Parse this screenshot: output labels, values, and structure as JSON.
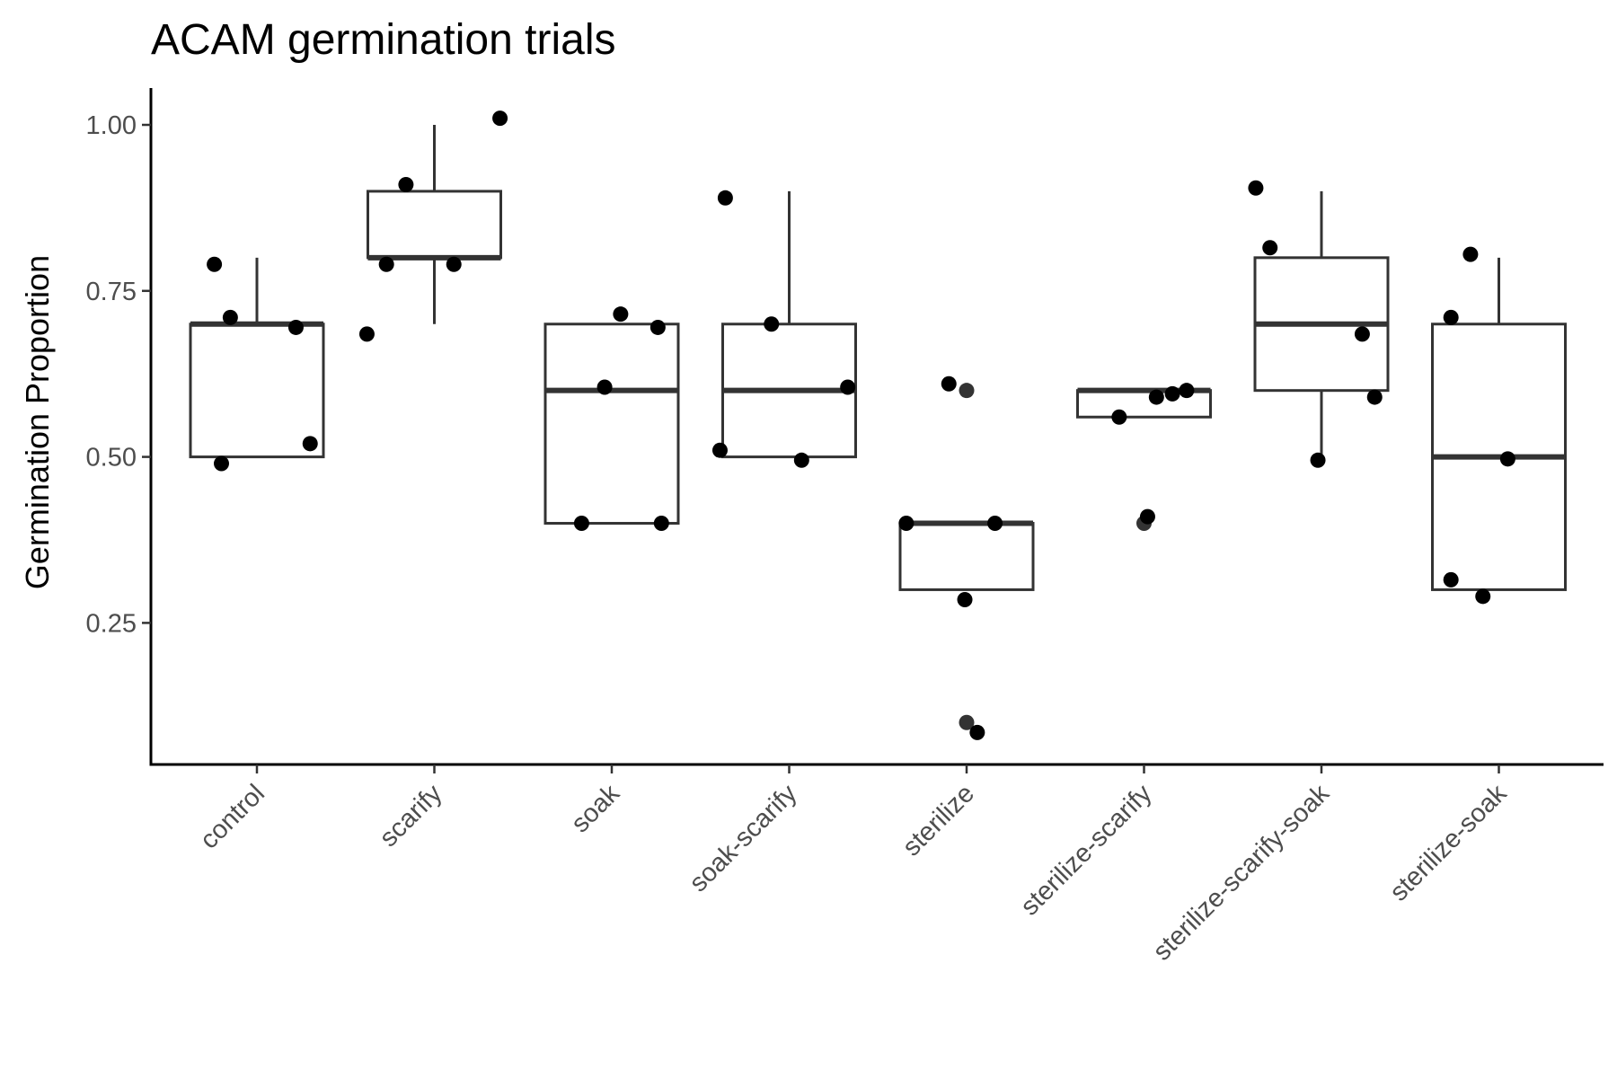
{
  "chart_data": {
    "type": "boxplot",
    "title": "ACAM germination trials",
    "xlabel": "",
    "ylabel": "Germination Proportion",
    "ylim": [
      0.07,
      1.05
    ],
    "yticks": [
      0.25,
      0.5,
      0.75,
      1.0
    ],
    "ytick_labels": [
      "0.25",
      "0.50",
      "0.75",
      "1.00"
    ],
    "grid": false,
    "categories": [
      "control",
      "scarify",
      "soak",
      "soak-scarify",
      "sterilize",
      "sterilize-scarify",
      "sterilize-scarify-soak",
      "sterilize-soak"
    ],
    "boxes": [
      {
        "category": "control",
        "whisker_low": 0.5,
        "q1": 0.5,
        "median": 0.7,
        "q3": 0.7,
        "whisker_high": 0.8,
        "outliers": []
      },
      {
        "category": "scarify",
        "whisker_low": 0.7,
        "q1": 0.8,
        "median": 0.8,
        "q3": 0.9,
        "whisker_high": 1.0,
        "outliers": []
      },
      {
        "category": "soak",
        "whisker_low": 0.4,
        "q1": 0.4,
        "median": 0.6,
        "q3": 0.7,
        "whisker_high": 0.7,
        "outliers": []
      },
      {
        "category": "soak-scarify",
        "whisker_low": 0.5,
        "q1": 0.5,
        "median": 0.6,
        "q3": 0.7,
        "whisker_high": 0.9,
        "outliers": []
      },
      {
        "category": "sterilize",
        "whisker_low": 0.3,
        "q1": 0.3,
        "median": 0.4,
        "q3": 0.4,
        "whisker_high": 0.4,
        "outliers": [
          0.6,
          0.1
        ]
      },
      {
        "category": "sterilize-scarify",
        "whisker_low": 0.56,
        "q1": 0.56,
        "median": 0.6,
        "q3": 0.6,
        "whisker_high": 0.6,
        "outliers": [
          0.4
        ]
      },
      {
        "category": "sterilize-scarify-soak",
        "whisker_low": 0.5,
        "q1": 0.6,
        "median": 0.7,
        "q3": 0.8,
        "whisker_high": 0.9,
        "outliers": []
      },
      {
        "category": "sterilize-soak",
        "whisker_low": 0.3,
        "q1": 0.3,
        "median": 0.5,
        "q3": 0.7,
        "whisker_high": 0.8,
        "outliers": []
      }
    ],
    "points": [
      {
        "category": "control",
        "jitter": -0.24,
        "y": 0.79
      },
      {
        "category": "control",
        "jitter": -0.15,
        "y": 0.71
      },
      {
        "category": "control",
        "jitter": 0.22,
        "y": 0.695
      },
      {
        "category": "control",
        "jitter": 0.3,
        "y": 0.52
      },
      {
        "category": "control",
        "jitter": -0.2,
        "y": 0.49
      },
      {
        "category": "scarify",
        "jitter": -0.16,
        "y": 0.91
      },
      {
        "category": "scarify",
        "jitter": -0.27,
        "y": 0.79
      },
      {
        "category": "scarify",
        "jitter": 0.11,
        "y": 0.79
      },
      {
        "category": "scarify",
        "jitter": -0.38,
        "y": 0.685
      },
      {
        "category": "scarify",
        "jitter": 0.37,
        "y": 1.01
      },
      {
        "category": "soak",
        "jitter": 0.05,
        "y": 0.715
      },
      {
        "category": "soak",
        "jitter": 0.26,
        "y": 0.695
      },
      {
        "category": "soak",
        "jitter": -0.04,
        "y": 0.605
      },
      {
        "category": "soak",
        "jitter": -0.17,
        "y": 0.4
      },
      {
        "category": "soak",
        "jitter": 0.28,
        "y": 0.4
      },
      {
        "category": "soak-scarify",
        "jitter": -0.36,
        "y": 0.89
      },
      {
        "category": "soak-scarify",
        "jitter": -0.1,
        "y": 0.7
      },
      {
        "category": "soak-scarify",
        "jitter": 0.33,
        "y": 0.605
      },
      {
        "category": "soak-scarify",
        "jitter": -0.39,
        "y": 0.51
      },
      {
        "category": "soak-scarify",
        "jitter": 0.07,
        "y": 0.495
      },
      {
        "category": "sterilize",
        "jitter": -0.1,
        "y": 0.61
      },
      {
        "category": "sterilize",
        "jitter": -0.34,
        "y": 0.4
      },
      {
        "category": "sterilize",
        "jitter": 0.16,
        "y": 0.4
      },
      {
        "category": "sterilize",
        "jitter": -0.01,
        "y": 0.285
      },
      {
        "category": "sterilize",
        "jitter": 0.06,
        "y": 0.085
      },
      {
        "category": "sterilize-scarify",
        "jitter": -0.14,
        "y": 0.56
      },
      {
        "category": "sterilize-scarify",
        "jitter": 0.07,
        "y": 0.59
      },
      {
        "category": "sterilize-scarify",
        "jitter": 0.16,
        "y": 0.595
      },
      {
        "category": "sterilize-scarify",
        "jitter": 0.24,
        "y": 0.6
      },
      {
        "category": "sterilize-scarify",
        "jitter": 0.02,
        "y": 0.41
      },
      {
        "category": "sterilize-scarify-soak",
        "jitter": -0.37,
        "y": 0.905
      },
      {
        "category": "sterilize-scarify-soak",
        "jitter": -0.29,
        "y": 0.815
      },
      {
        "category": "sterilize-scarify-soak",
        "jitter": 0.23,
        "y": 0.685
      },
      {
        "category": "sterilize-scarify-soak",
        "jitter": 0.3,
        "y": 0.59
      },
      {
        "category": "sterilize-scarify-soak",
        "jitter": -0.02,
        "y": 0.495
      },
      {
        "category": "sterilize-soak",
        "jitter": -0.16,
        "y": 0.805
      },
      {
        "category": "sterilize-soak",
        "jitter": -0.27,
        "y": 0.71
      },
      {
        "category": "sterilize-soak",
        "jitter": 0.05,
        "y": 0.497
      },
      {
        "category": "sterilize-soak",
        "jitter": -0.27,
        "y": 0.315
      },
      {
        "category": "sterilize-soak",
        "jitter": -0.09,
        "y": 0.29
      }
    ]
  }
}
